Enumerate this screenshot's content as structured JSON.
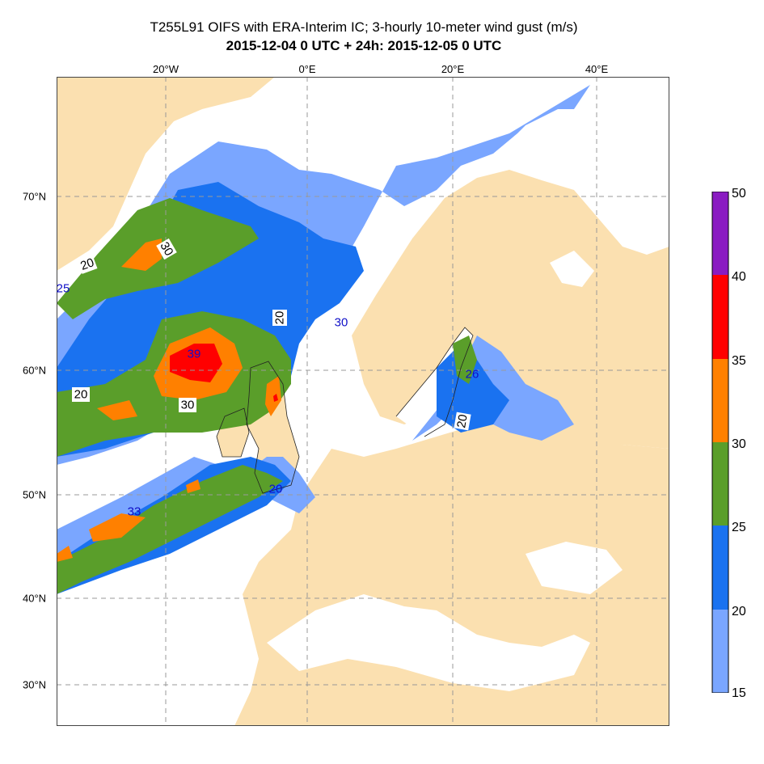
{
  "title": {
    "line1": "T255L91 OIFS with ERA-Interim IC; 3-hourly 10-meter wind gust (m/s)",
    "line2": "2015-12-04 0 UTC + 24h: 2015-12-05 0 UTC"
  },
  "lon_labels": [
    "20°W",
    "0°E",
    "20°E",
    "40°E"
  ],
  "lat_labels": [
    "70°N",
    "60°N",
    "50°N",
    "40°N",
    "30°N"
  ],
  "contour_labels": [
    {
      "text": "30",
      "color": "#000000",
      "boxed": true,
      "rotate": 60
    },
    {
      "text": "20",
      "color": "#000000",
      "boxed": true,
      "rotate": -20
    },
    {
      "text": "25",
      "color": "#1010c8",
      "boxed": false,
      "rotate": 0
    },
    {
      "text": "20",
      "color": "#000000",
      "boxed": true,
      "rotate": -90
    },
    {
      "text": "30",
      "color": "#1010c8",
      "boxed": false,
      "rotate": 0
    },
    {
      "text": "39",
      "color": "#1010c8",
      "boxed": false,
      "rotate": 0
    },
    {
      "text": "26",
      "color": "#1010c8",
      "boxed": false,
      "rotate": 0
    },
    {
      "text": "20",
      "color": "#000000",
      "boxed": true,
      "rotate": 0
    },
    {
      "text": "30",
      "color": "#000000",
      "boxed": true,
      "rotate": 0
    },
    {
      "text": "20",
      "color": "#000000",
      "boxed": true,
      "rotate": -80
    },
    {
      "text": "20",
      "color": "#1010c8",
      "boxed": false,
      "rotate": 0
    },
    {
      "text": "33",
      "color": "#1010c8",
      "boxed": false,
      "rotate": 0
    }
  ],
  "colorbar": {
    "labels": [
      "50",
      "40",
      "35",
      "30",
      "25",
      "20",
      "15"
    ],
    "bands": [
      {
        "range": "40-50",
        "color": "#8a1bc2"
      },
      {
        "range": "35-40",
        "color": "#ff0000"
      },
      {
        "range": "30-35",
        "color": "#ff8000"
      },
      {
        "range": "25-30",
        "color": "#5a9e2a"
      },
      {
        "range": "20-25",
        "color": "#1a72f0"
      },
      {
        "range": "15-20",
        "color": "#7aa6ff"
      }
    ]
  },
  "colors": {
    "land": "#fbe0b0",
    "sea": "#ffffff",
    "grid": "#999999"
  }
}
